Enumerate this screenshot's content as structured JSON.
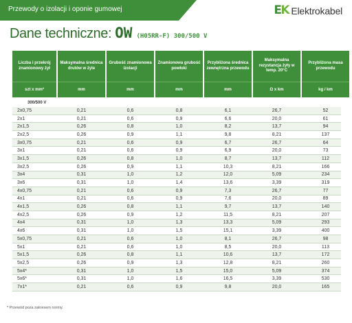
{
  "top": {
    "category": "Przewody o izolacji i oponie gumowej",
    "brand": "Elektrokabel"
  },
  "title": {
    "prefix": "Dane techniczne:",
    "model": "OW",
    "suffix": "(H05RR-F) 300/500 V"
  },
  "headers": [
    {
      "label": "Liczba i przekrój znamionowy żył",
      "unit": "szt x mm²"
    },
    {
      "label": "Maksymalna średnica drutów w żyle",
      "unit": "mm"
    },
    {
      "label": "Grubość znamionowa izolacji",
      "unit": "mm"
    },
    {
      "label": "Znamionowa grubość powłoki",
      "unit": "mm"
    },
    {
      "label": "Przybliżona średnica zewnętrzna przewodu",
      "unit": "mm"
    },
    {
      "label": "Maksymalna rezystancja żyły w temp. 20°C",
      "unit": "Ω x km"
    },
    {
      "label": "Przybliżona masa przewodu",
      "unit": "kg / km"
    }
  ],
  "group_label": "300/500 V",
  "rows": [
    [
      "2x0,75",
      "0,21",
      "0,6",
      "0,8",
      "6,1",
      "26,7",
      "52"
    ],
    [
      "2x1",
      "0,21",
      "0,6",
      "0,9",
      "6,6",
      "20,0",
      "61"
    ],
    [
      "2x1,5",
      "0,26",
      "0,8",
      "1,0",
      "8,2",
      "13,7",
      "94"
    ],
    [
      "2x2,5",
      "0,26",
      "0,9",
      "1,1",
      "9,8",
      "8,21",
      "137"
    ],
    [
      "3x0,75",
      "0,21",
      "0,6",
      "0,9",
      "6,7",
      "26,7",
      "64"
    ],
    [
      "3x1",
      "0,21",
      "0,6",
      "0,9",
      "6,9",
      "20,0",
      "73"
    ],
    [
      "3x1,5",
      "0,26",
      "0,8",
      "1,0",
      "8,7",
      "13,7",
      "112"
    ],
    [
      "3x2,5",
      "0,26",
      "0,9",
      "1,1",
      "10,3",
      "8,21",
      "166"
    ],
    [
      "3x4",
      "0,31",
      "1,0",
      "1,2",
      "12,0",
      "5,09",
      "234"
    ],
    [
      "3x6",
      "0,31",
      "1,0",
      "1,4",
      "13,6",
      "3,39",
      "319"
    ],
    [
      "4x0,75",
      "0,21",
      "0,6",
      "0,9",
      "7,3",
      "26,7",
      "77"
    ],
    [
      "4x1",
      "0,21",
      "0,6",
      "0,9",
      "7,6",
      "20,0",
      "89"
    ],
    [
      "4x1,5",
      "0,26",
      "0,8",
      "1,1",
      "9,7",
      "13,7",
      "140"
    ],
    [
      "4x2,5",
      "0,26",
      "0,9",
      "1,2",
      "11,5",
      "8,21",
      "207"
    ],
    [
      "4x4",
      "0,31",
      "1,0",
      "1,3",
      "13,3",
      "5,09",
      "293"
    ],
    [
      "4x6",
      "0,31",
      "1,0",
      "1,5",
      "15,1",
      "3,39",
      "400"
    ],
    [
      "5x0,75",
      "0,21",
      "0,6",
      "1,0",
      "8,1",
      "26,7",
      "98"
    ],
    [
      "5x1",
      "0,21",
      "0,6",
      "1,0",
      "8,5",
      "20,0",
      "113"
    ],
    [
      "5x1,5",
      "0,26",
      "0,8",
      "1,1",
      "10,6",
      "13,7",
      "172"
    ],
    [
      "5x2,5",
      "0,26",
      "0,9",
      "1,3",
      "12,8",
      "8,21",
      "260"
    ],
    [
      "5x4*",
      "0,31",
      "1,0",
      "1,5",
      "15,0",
      "5,09",
      "374"
    ],
    [
      "5x6*",
      "0,31",
      "1,0",
      "1,6",
      "16,5",
      "3,39",
      "530"
    ],
    [
      "7x1*",
      "0,21",
      "0,6",
      "0,9",
      "9,8",
      "20,0",
      "165"
    ]
  ],
  "footnote": "* Przewód poza zakresem normy.",
  "colors": {
    "green": "#3f8f3a",
    "dark_green": "#2d6b2a",
    "stripe": "#eef4ec"
  }
}
